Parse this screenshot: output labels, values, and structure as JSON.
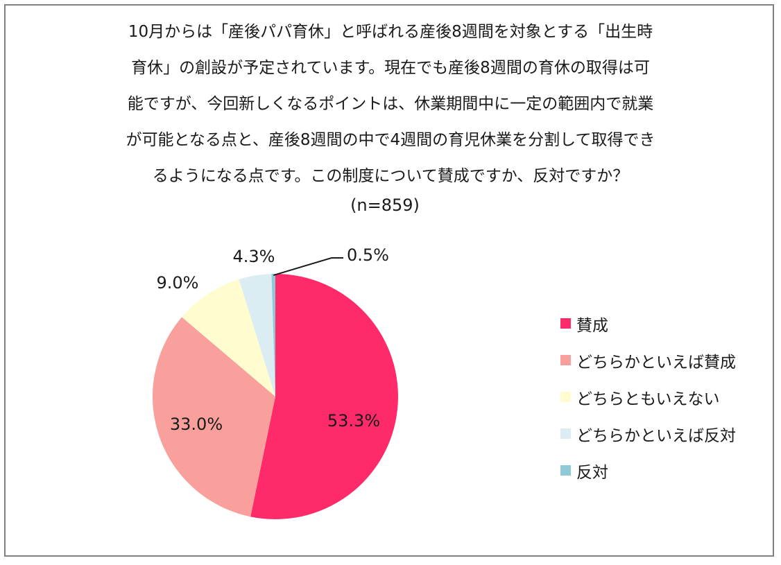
{
  "question": {
    "lines": [
      "10月からは「産後パパ育休」と呼ばれる産後8週間を対象とする「出生時",
      "育休」の創設が予定されています。現在でも産後8週間の育休の取得は可",
      "能ですが、今回新しくなるポイントは、休業期間中に一定の範囲内で就業",
      "が可能となる点と、産後8週間の中で4週間の育児休業を分割して取得でき",
      "るようになる点です。この制度について賛成ですか、反対ですか？"
    ]
  },
  "sample": "(n=859)",
  "chart_data": {
    "type": "pie",
    "title": "",
    "unit": "%",
    "categories": [
      "賛成",
      "どちらかといえば賛成",
      "どちらともいえない",
      "どちらかといえば反対",
      "反対"
    ],
    "values": [
      53.3,
      33.0,
      9.0,
      4.3,
      0.5
    ],
    "labels": [
      "53.3%",
      "33.0%",
      "9.0%",
      "4.3%",
      "0.5%"
    ],
    "colors": [
      "#ff2a6a",
      "#f9a09d",
      "#fffdd0",
      "#dbecf2",
      "#8ec9d6"
    ],
    "start_angle_deg": 0,
    "direction": "clockwise",
    "legend_position": "right"
  }
}
